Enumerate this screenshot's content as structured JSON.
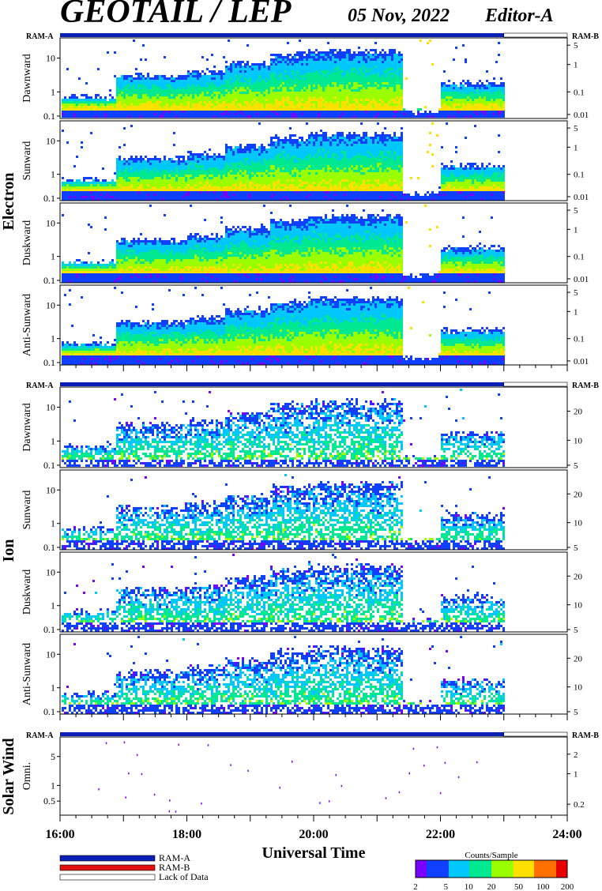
{
  "header": {
    "title": "GEOTAIL / LEP",
    "date": "05 Nov, 2022",
    "editor": "Editor-A"
  },
  "chart_data": {
    "type": "heatmap",
    "time_axis": {
      "label": "Universal Time",
      "range_hours": [
        16,
        24
      ],
      "ticks": [
        {
          "v": 16,
          "label": "16:00"
        },
        {
          "v": 18,
          "label": "18:00"
        },
        {
          "v": 20,
          "label": "20:00"
        },
        {
          "v": 22,
          "label": "22:00"
        },
        {
          "v": 24,
          "label": "24:00"
        }
      ],
      "data_end_hours": 23.0
    },
    "groups": [
      {
        "label": "Electron",
        "ram_a": "RAM-A",
        "ram_b": "RAM-B",
        "panels": [
          {
            "name": "Dawnward",
            "left_ticks": [
              "10",
              "1",
              "0.1"
            ],
            "right_ticks": [
              "5",
              "1",
              "0.1",
              "0.01"
            ]
          },
          {
            "name": "Sunward",
            "left_ticks": [
              "10",
              "1",
              "0.1"
            ],
            "right_ticks": [
              "5",
              "1",
              "0.1",
              "0.01"
            ]
          },
          {
            "name": "Duskward",
            "left_ticks": [
              "10",
              "1",
              "0.1"
            ],
            "right_ticks": [
              "5",
              "1",
              "0.1",
              "0.01"
            ]
          },
          {
            "name": "Anti-Sunward",
            "left_ticks": [
              "10",
              "1",
              "0.1"
            ],
            "right_ticks": [
              "5",
              "1",
              "0.1",
              "0.01"
            ]
          }
        ]
      },
      {
        "label": "Ion",
        "ram_a": "RAM-A",
        "ram_b": "RAM-B",
        "panels": [
          {
            "name": "Dawnward",
            "left_ticks": [
              "10",
              "1",
              "0.1"
            ],
            "right_ticks": [
              "20",
              "10",
              "5"
            ]
          },
          {
            "name": "Sunward",
            "left_ticks": [
              "10",
              "1",
              "0.1"
            ],
            "right_ticks": [
              "20",
              "10",
              "5"
            ]
          },
          {
            "name": "Duskward",
            "left_ticks": [
              "10",
              "1",
              "0.1"
            ],
            "right_ticks": [
              "20",
              "10",
              "5"
            ]
          },
          {
            "name": "Anti-Sunward",
            "left_ticks": [
              "10",
              "1",
              "0.1"
            ],
            "right_ticks": [
              "20",
              "10",
              "5"
            ]
          }
        ]
      },
      {
        "label": "Solar Wind",
        "ram_a": "RAM-A",
        "ram_b": "RAM-B",
        "panels": [
          {
            "name": "Omni.",
            "left_ticks": [
              "5",
              "1",
              "0.5"
            ],
            "right_ticks": [
              "2",
              "1",
              "0.2"
            ]
          }
        ]
      }
    ],
    "legend": {
      "items": [
        {
          "label": "RAM-A",
          "color": "#0a1fb4"
        },
        {
          "label": "RAM-B",
          "color": "#e01010"
        },
        {
          "label": "Lack of Data",
          "color": "#ffffff"
        }
      ]
    },
    "colorbar": {
      "title": "Counts/Sample",
      "ticks": [
        "2",
        "5",
        "10",
        "20",
        "50",
        "100",
        "200"
      ],
      "colors": [
        "#7a00ff",
        "#1040ff",
        "#00c8ff",
        "#00e890",
        "#9aff00",
        "#ffe000",
        "#ff7000",
        "#e80000"
      ]
    }
  }
}
